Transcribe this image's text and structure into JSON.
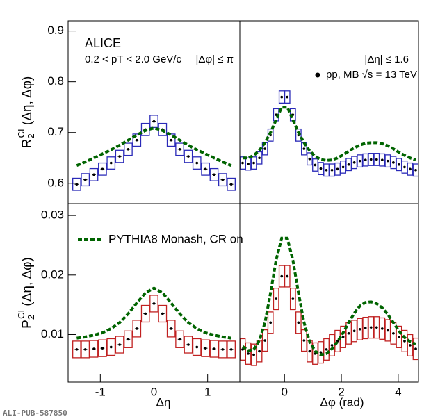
{
  "chart_data": [
    {
      "type": "line",
      "ylabel": {
        "main": "R",
        "sub": "2",
        "sup": "CI",
        "args": " (Δη, Δφ)"
      },
      "annotations": [
        "ALICE",
        "0.2 < pT < 2.0 GeV/c",
        "|Δφ| ≤ π"
      ],
      "xlim": [
        -1.6,
        1.6
      ],
      "ylim": [
        0.56,
        0.92
      ],
      "yticks": [
        0.6,
        0.7,
        0.8,
        0.9
      ],
      "x": [
        -1.44,
        -1.28,
        -1.12,
        -0.96,
        -0.8,
        -0.64,
        -0.48,
        -0.32,
        -0.16,
        0,
        0.16,
        0.32,
        0.48,
        0.64,
        0.8,
        0.96,
        1.12,
        1.28,
        1.44
      ],
      "series": [
        {
          "style": "box",
          "color": "#2a2ab8",
          "error": 0.012,
          "values": [
            0.598,
            0.607,
            0.617,
            0.628,
            0.64,
            0.653,
            0.667,
            0.685,
            0.706,
            0.722,
            0.706,
            0.685,
            0.667,
            0.653,
            0.64,
            0.628,
            0.617,
            0.607,
            0.598
          ]
        },
        {
          "style": "dashed",
          "color": "#006400",
          "values": [
            0.635,
            0.642,
            0.65,
            0.658,
            0.666,
            0.675,
            0.685,
            0.695,
            0.704,
            0.709,
            0.704,
            0.695,
            0.685,
            0.675,
            0.666,
            0.658,
            0.65,
            0.642,
            0.635
          ]
        }
      ]
    },
    {
      "type": "line",
      "annotations": [
        "|Δη| ≤ 1.6"
      ],
      "legend": "upper right",
      "xlim": [
        -1.571,
        4.712
      ],
      "ylim": [
        0.56,
        0.92
      ],
      "x": [
        -1.473,
        -1.276,
        -1.08,
        -0.884,
        -0.687,
        -0.491,
        -0.295,
        -0.098,
        0.098,
        0.295,
        0.491,
        0.687,
        0.884,
        1.08,
        1.276,
        1.473,
        1.669,
        1.865,
        2.062,
        2.258,
        2.454,
        2.651,
        2.847,
        3.043,
        3.24,
        3.436,
        3.632,
        3.829,
        4.025,
        4.222,
        4.418,
        4.614
      ],
      "series": [
        {
          "name": "pp, MB √s = 13 TeV",
          "style": "box",
          "color": "#2a2ab8",
          "error": 0.012,
          "values": [
            0.64,
            0.638,
            0.64,
            0.65,
            0.668,
            0.695,
            0.735,
            0.77,
            0.77,
            0.735,
            0.695,
            0.668,
            0.648,
            0.636,
            0.629,
            0.626,
            0.626,
            0.628,
            0.632,
            0.637,
            0.641,
            0.644,
            0.646,
            0.647,
            0.647,
            0.646,
            0.644,
            0.641,
            0.637,
            0.632,
            0.628,
            0.626
          ]
        },
        {
          "style": "dashed",
          "color": "#006400",
          "values": [
            0.65,
            0.65,
            0.655,
            0.665,
            0.68,
            0.7,
            0.725,
            0.75,
            0.75,
            0.725,
            0.7,
            0.68,
            0.664,
            0.653,
            0.647,
            0.645,
            0.646,
            0.65,
            0.656,
            0.663,
            0.67,
            0.675,
            0.679,
            0.68,
            0.68,
            0.678,
            0.674,
            0.668,
            0.661,
            0.655,
            0.65,
            0.646
          ]
        }
      ]
    },
    {
      "type": "line",
      "ylabel": {
        "main": "P",
        "sub": "2",
        "sup": "CI",
        "args": " (Δη, Δφ)"
      },
      "xlabel": "Δη",
      "legend": "upper left",
      "xlim": [
        -1.6,
        1.6
      ],
      "ylim": [
        0.002,
        0.032
      ],
      "yticks": [
        0.01,
        0.02,
        0.03
      ],
      "xticks": [
        -1,
        0,
        1
      ],
      "x": [
        -1.44,
        -1.28,
        -1.12,
        -0.96,
        -0.8,
        -0.64,
        -0.48,
        -0.32,
        -0.16,
        0,
        0.16,
        0.32,
        0.48,
        0.64,
        0.8,
        0.96,
        1.12,
        1.28,
        1.44
      ],
      "series": [
        {
          "style": "box",
          "color": "#c02020",
          "error": 0.0014,
          "values": [
            0.0075,
            0.0075,
            0.0076,
            0.0077,
            0.0079,
            0.0083,
            0.0092,
            0.011,
            0.0135,
            0.0152,
            0.0135,
            0.011,
            0.0092,
            0.0083,
            0.0079,
            0.0077,
            0.0076,
            0.0075,
            0.0075
          ]
        },
        {
          "name": "PYTHIA8 Monash, CR on",
          "style": "dashed",
          "color": "#006400",
          "values": [
            0.0094,
            0.0096,
            0.0099,
            0.0103,
            0.011,
            0.012,
            0.0135,
            0.0153,
            0.017,
            0.0178,
            0.017,
            0.0153,
            0.0135,
            0.012,
            0.011,
            0.0103,
            0.0099,
            0.0096,
            0.0094
          ]
        }
      ]
    },
    {
      "type": "line",
      "xlabel": "Δφ (rad)",
      "xlim": [
        -1.571,
        4.712
      ],
      "ylim": [
        0.002,
        0.032
      ],
      "xticks": [
        0,
        2,
        4
      ],
      "x": [
        -1.473,
        -1.276,
        -1.08,
        -0.884,
        -0.687,
        -0.491,
        -0.295,
        -0.098,
        0.098,
        0.295,
        0.491,
        0.687,
        0.884,
        1.08,
        1.276,
        1.473,
        1.669,
        1.865,
        2.062,
        2.258,
        2.454,
        2.651,
        2.847,
        3.043,
        3.24,
        3.436,
        3.632,
        3.829,
        4.025,
        4.222,
        4.418,
        4.614
      ],
      "series": [
        {
          "style": "box",
          "color": "#c02020",
          "error": 0.0018,
          "values": [
            0.0075,
            0.0068,
            0.0066,
            0.0072,
            0.009,
            0.012,
            0.016,
            0.0198,
            0.0198,
            0.016,
            0.012,
            0.009,
            0.0072,
            0.0068,
            0.007,
            0.0075,
            0.0082,
            0.0089,
            0.0096,
            0.0102,
            0.0106,
            0.0109,
            0.0111,
            0.0112,
            0.0112,
            0.011,
            0.0107,
            0.0102,
            0.0096,
            0.0089,
            0.0082,
            0.0076
          ]
        },
        {
          "style": "dashed",
          "color": "#006400",
          "values": [
            0.008,
            0.0073,
            0.0075,
            0.009,
            0.012,
            0.017,
            0.0225,
            0.0262,
            0.0262,
            0.0225,
            0.017,
            0.012,
            0.0088,
            0.0072,
            0.0066,
            0.0068,
            0.0076,
            0.0088,
            0.0103,
            0.012,
            0.0136,
            0.0148,
            0.0154,
            0.0155,
            0.0152,
            0.0145,
            0.0134,
            0.012,
            0.0106,
            0.0095,
            0.0088,
            0.0084
          ]
        }
      ]
    }
  ],
  "footer": "ALI-PUB-587850"
}
